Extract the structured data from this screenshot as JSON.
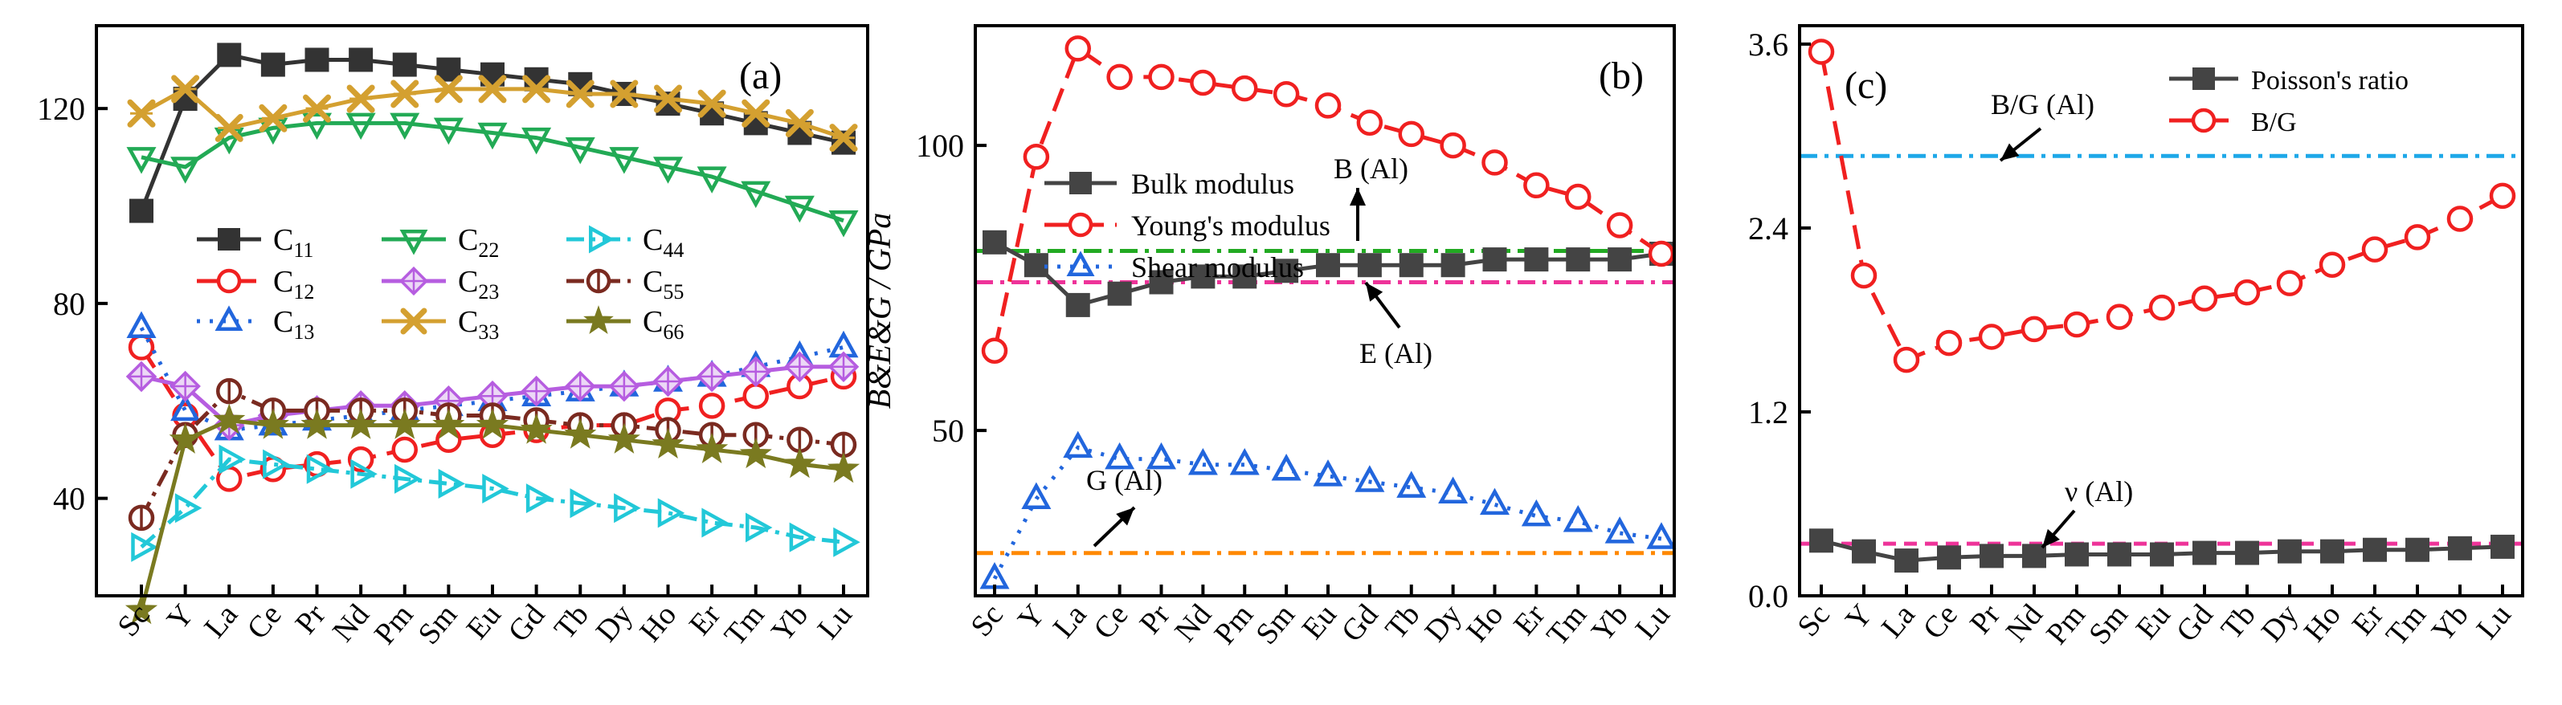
{
  "chart_data": [
    {
      "type": "line",
      "panel_label": "(a)",
      "xlabel": "",
      "ylabel": "",
      "categories": [
        "Sc",
        "Y",
        "La",
        "Ce",
        "Pr",
        "Nd",
        "Pm",
        "Sm",
        "Eu",
        "Gd",
        "Tb",
        "Dy",
        "Ho",
        "Er",
        "Tm",
        "Yb",
        "Lu"
      ],
      "ylim": [
        20,
        137
      ],
      "yticks": [
        40,
        80,
        120
      ],
      "legend_position": "center-left",
      "series": [
        {
          "name": "C11",
          "sub": "11",
          "color": "#333333",
          "marker": "square",
          "dash": "solid",
          "values": [
            99,
            122,
            131,
            129,
            130,
            130,
            129,
            128,
            127,
            126,
            125,
            123,
            121,
            119,
            117,
            115,
            113
          ]
        },
        {
          "name": "C12",
          "sub": "12",
          "color": "#f02020",
          "marker": "circle",
          "dash": "longdash",
          "values": [
            71,
            57,
            44,
            46,
            47,
            48,
            50,
            52,
            53,
            54,
            55,
            55,
            58,
            59,
            61,
            63,
            65
          ]
        },
        {
          "name": "C13",
          "sub": "13",
          "color": "#2266dd",
          "marker": "triangle",
          "dash": "dot",
          "values": [
            75,
            58,
            54,
            55,
            56,
            57,
            58,
            59,
            60,
            61,
            62,
            63,
            64,
            65,
            67,
            69,
            71
          ]
        },
        {
          "name": "C22",
          "sub": "22",
          "color": "#22aa55",
          "marker": "triangle-down",
          "dash": "solid",
          "values": [
            110,
            108,
            114,
            116,
            117,
            117,
            117,
            116,
            115,
            114,
            112,
            110,
            108,
            106,
            103,
            100,
            97
          ]
        },
        {
          "name": "C23",
          "sub": "23",
          "color": "#b65de0",
          "marker": "diamond",
          "dash": "solid",
          "values": [
            65,
            63,
            55,
            57,
            58,
            59,
            59,
            60,
            61,
            62,
            63,
            63,
            64,
            65,
            66,
            67,
            67
          ]
        },
        {
          "name": "C33",
          "sub": "33",
          "color": "#d4a030",
          "marker": "xcross",
          "dash": "solid",
          "values": [
            119,
            124,
            116,
            118,
            120,
            122,
            123,
            124,
            124,
            124,
            123,
            123,
            122,
            121,
            119,
            117,
            114
          ]
        },
        {
          "name": "C44",
          "sub": "44",
          "color": "#22c8d8",
          "marker": "triangle-right",
          "dash": "dashdot",
          "values": [
            30,
            38,
            48,
            47,
            46,
            45,
            44,
            43,
            42,
            40,
            39,
            38,
            37,
            35,
            34,
            32,
            31
          ]
        },
        {
          "name": "C55",
          "sub": "55",
          "color": "#7a2a20",
          "marker": "circle-bar",
          "dash": "dashdot",
          "values": [
            36,
            53,
            62,
            58,
            58,
            58,
            58,
            57,
            57,
            56,
            55,
            55,
            54,
            53,
            53,
            52,
            51
          ]
        },
        {
          "name": "C66",
          "sub": "66",
          "color": "#7a7a20",
          "marker": "star",
          "dash": "solid",
          "values": [
            17,
            52,
            56,
            55,
            55,
            55,
            55,
            55,
            55,
            54,
            53,
            52,
            51,
            50,
            49,
            47,
            46
          ]
        }
      ]
    },
    {
      "type": "line",
      "panel_label": "(b)",
      "xlabel": "",
      "ylabel": "B&E&G / GPa",
      "categories": [
        "Sc",
        "Y",
        "La",
        "Ce",
        "Pr",
        "Nd",
        "Pm",
        "Sm",
        "Eu",
        "Gd",
        "Tb",
        "Dy",
        "Ho",
        "Er",
        "Tm",
        "Yb",
        "Lu"
      ],
      "ylim": [
        21,
        121
      ],
      "yticks": [
        50,
        100
      ],
      "legend_position": "top-left",
      "series": [
        {
          "name": "Bulk modulus",
          "color": "#444444",
          "marker": "square",
          "dash": "solid",
          "values": [
            83,
            79,
            72,
            74,
            76,
            77,
            77,
            78,
            79,
            79,
            79,
            79,
            80,
            80,
            80,
            80,
            81
          ]
        },
        {
          "name": "Young's modulus",
          "color": "#f02020",
          "marker": "circle",
          "dash": "longdash",
          "values": [
            64,
            98,
            117,
            112,
            112,
            111,
            110,
            109,
            107,
            104,
            102,
            100,
            97,
            93,
            91,
            86,
            81
          ]
        },
        {
          "name": "Shear modulus",
          "color": "#2266dd",
          "marker": "triangle",
          "dash": "dot",
          "values": [
            24,
            38,
            47,
            45,
            45,
            44,
            44,
            43,
            42,
            41,
            40,
            39,
            37,
            35,
            34,
            32,
            31
          ]
        }
      ],
      "reference_lines": [
        {
          "label": "B (Al)",
          "value": 81.5,
          "color": "#22aa22",
          "dash": "dashdot"
        },
        {
          "label": "E (Al)",
          "value": 76,
          "color": "#ee3399",
          "dash": "dashdot"
        },
        {
          "label": "G (Al)",
          "value": 28.5,
          "color": "#ff8800",
          "dash": "dashdot"
        }
      ]
    },
    {
      "type": "line",
      "panel_label": "(c)",
      "xlabel": "",
      "ylabel": "",
      "categories": [
        "Sc",
        "Y",
        "La",
        "Ce",
        "Pr",
        "Nd",
        "Pm",
        "Sm",
        "Eu",
        "Gd",
        "Tb",
        "Dy",
        "Ho",
        "Er",
        "Tm",
        "Yb",
        "Lu"
      ],
      "ylim": [
        0,
        3.72
      ],
      "yticks": [
        "0.0",
        "1.2",
        "2.4",
        "3.6"
      ],
      "legend_position": "top-right",
      "series": [
        {
          "name": "Poisson's ratio",
          "color": "#444444",
          "marker": "square",
          "dash": "solid",
          "values": [
            0.36,
            0.29,
            0.23,
            0.25,
            0.26,
            0.26,
            0.27,
            0.27,
            0.27,
            0.28,
            0.28,
            0.29,
            0.29,
            0.3,
            0.3,
            0.31,
            0.32
          ]
        },
        {
          "name": "B/G",
          "color": "#f02020",
          "marker": "circle",
          "dash": "longdash",
          "values": [
            3.55,
            2.09,
            1.54,
            1.65,
            1.69,
            1.74,
            1.77,
            1.82,
            1.88,
            1.94,
            1.98,
            2.04,
            2.16,
            2.26,
            2.34,
            2.46,
            2.61
          ]
        }
      ],
      "reference_lines": [
        {
          "label": "B/G (Al)",
          "value": 2.87,
          "color": "#1ea8e8",
          "dash": "dashdot"
        },
        {
          "label": "ν (Al)",
          "value": 0.34,
          "color": "#ee3399",
          "dash": "dash"
        }
      ]
    }
  ]
}
